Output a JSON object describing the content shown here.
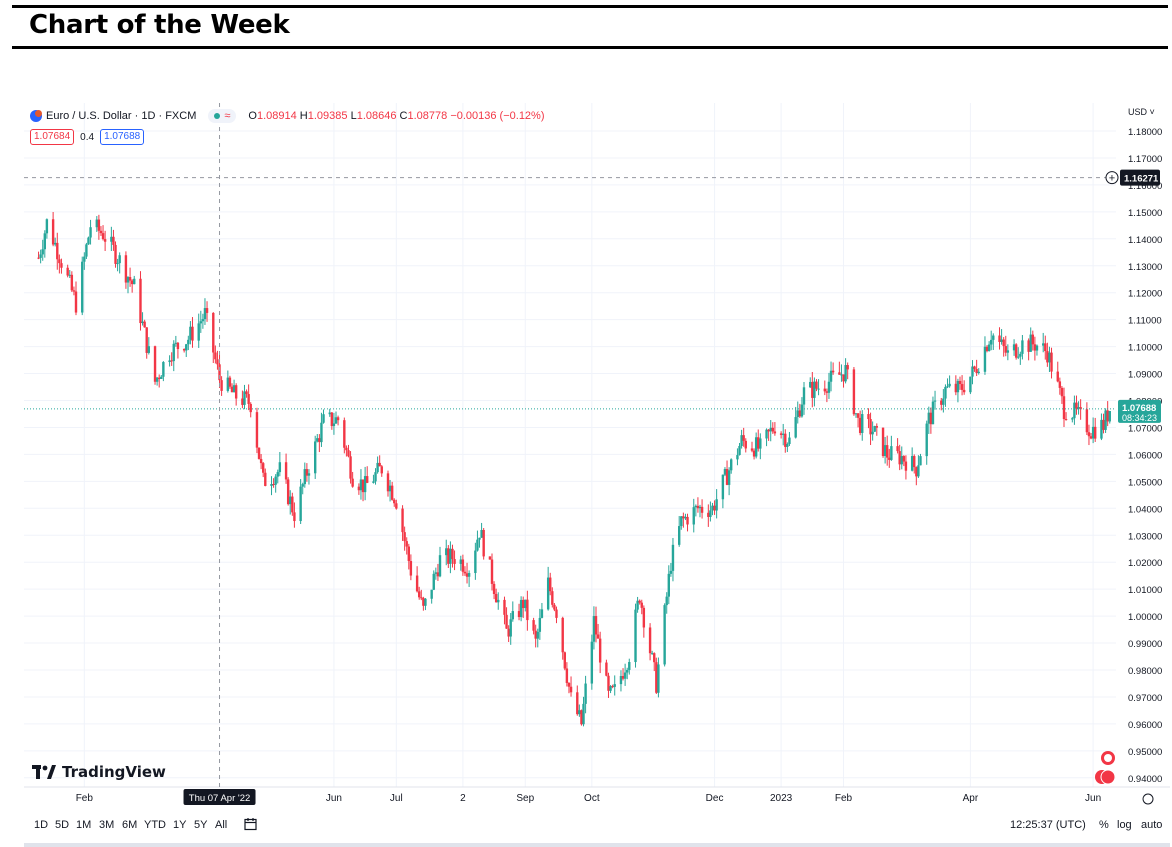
{
  "page": {
    "title": "Chart of the Week"
  },
  "legend": {
    "symbol": "Euro / U.S. Dollar · 1D · FXCM",
    "market_wave": "≈",
    "ohlc": {
      "o_label": "O",
      "o": "1.08914",
      "h_label": "H",
      "h": "1.09385",
      "l_label": "L",
      "l": "1.08646",
      "c_label": "C",
      "c": "1.08778",
      "change": "−0.00136 (−0.12%)"
    },
    "sell_price": "1.07684",
    "spread": "0.4",
    "buy_price": "1.07688"
  },
  "currency_label": "USD ˅",
  "brand": "TradingView",
  "bottom": {
    "timeframes": [
      "1D",
      "5D",
      "1M",
      "3M",
      "6M",
      "YTD",
      "1Y",
      "5Y",
      "All"
    ],
    "clock": "12:25:37 (UTC)",
    "opt_pct": "%",
    "opt_log": "log",
    "opt_auto": "auto"
  },
  "colors": {
    "up": "#26a69a",
    "down": "#f23645",
    "grid": "#f0f3fa",
    "last_price_bg": "#26a69a",
    "crosshair_label_bg": "#131722"
  },
  "chart_data": {
    "type": "candlestick",
    "title": "",
    "symbol": "Euro / U.S. Dollar",
    "interval": "1D",
    "x_ticks": [
      "Feb",
      "Thu 07 Apr '22",
      "Jun",
      "Jul",
      "2",
      "Sep",
      "Oct",
      "Dec",
      "2023",
      "Feb",
      "Apr",
      "Jun"
    ],
    "y_ticks": [
      "1.18000",
      "1.17000",
      "1.16000",
      "1.15000",
      "1.14000",
      "1.13000",
      "1.12000",
      "1.11000",
      "1.10000",
      "1.09000",
      "1.08000",
      "1.07000",
      "1.06000",
      "1.05000",
      "1.04000",
      "1.03000",
      "1.02000",
      "1.01000",
      "1.00000",
      "0.99000",
      "0.98000",
      "0.97000",
      "0.96000",
      "0.95000",
      "0.94000"
    ],
    "ylim": [
      0.937,
      1.186
    ],
    "crosshair": {
      "date": "Thu 07 Apr '22",
      "price": "1.16271"
    },
    "last_price": {
      "price": "1.07688",
      "countdown": "08:34:23"
    },
    "close_path": [
      [
        "2022-01-10",
        1.133
      ],
      [
        "2022-01-14",
        1.146
      ],
      [
        "2022-01-20",
        1.134
      ],
      [
        "2022-01-28",
        1.116
      ],
      [
        "2022-02-04",
        1.145
      ],
      [
        "2022-02-10",
        1.142
      ],
      [
        "2022-02-18",
        1.132
      ],
      [
        "2022-02-25",
        1.122
      ],
      [
        "2022-03-07",
        1.087
      ],
      [
        "2022-03-14",
        1.098
      ],
      [
        "2022-03-23",
        1.103
      ],
      [
        "2022-03-31",
        1.112
      ],
      [
        "2022-04-07",
        1.088
      ],
      [
        "2022-04-14",
        1.082
      ],
      [
        "2022-04-22",
        1.079
      ],
      [
        "2022-04-28",
        1.05
      ],
      [
        "2022-05-06",
        1.054
      ],
      [
        "2022-05-13",
        1.038
      ],
      [
        "2022-05-20",
        1.056
      ],
      [
        "2022-05-27",
        1.072
      ],
      [
        "2022-06-03",
        1.073
      ],
      [
        "2022-06-10",
        1.052
      ],
      [
        "2022-06-16",
        1.048
      ],
      [
        "2022-06-24",
        1.055
      ],
      [
        "2022-07-01",
        1.043
      ],
      [
        "2022-07-08",
        1.017
      ],
      [
        "2022-07-14",
        1.002
      ],
      [
        "2022-07-22",
        1.021
      ],
      [
        "2022-07-29",
        1.022
      ],
      [
        "2022-08-05",
        1.018
      ],
      [
        "2022-08-10",
        1.032
      ],
      [
        "2022-08-15",
        1.017
      ],
      [
        "2022-08-23",
        0.994
      ],
      [
        "2022-08-31",
        1.005
      ],
      [
        "2022-09-06",
        0.99
      ],
      [
        "2022-09-12",
        1.012
      ],
      [
        "2022-09-16",
        1.002
      ],
      [
        "2022-09-23",
        0.969
      ],
      [
        "2022-09-28",
        0.96
      ],
      [
        "2022-10-04",
        0.998
      ],
      [
        "2022-10-11",
        0.97
      ],
      [
        "2022-10-14",
        0.972
      ],
      [
        "2022-10-21",
        0.986
      ],
      [
        "2022-10-26",
        1.008
      ],
      [
        "2022-11-03",
        0.975
      ],
      [
        "2022-11-10",
        1.02
      ],
      [
        "2022-11-15",
        1.035
      ],
      [
        "2022-11-23",
        1.04
      ],
      [
        "2022-11-30",
        1.04
      ],
      [
        "2022-12-05",
        1.049
      ],
      [
        "2022-12-14",
        1.065
      ],
      [
        "2022-12-23",
        1.062
      ],
      [
        "2022-12-30",
        1.071
      ],
      [
        "2023-01-06",
        1.065
      ],
      [
        "2023-01-13",
        1.083
      ],
      [
        "2023-01-20",
        1.085
      ],
      [
        "2023-01-27",
        1.088
      ],
      [
        "2023-02-02",
        1.091
      ],
      [
        "2023-02-08",
        1.072
      ],
      [
        "2023-02-15",
        1.069
      ],
      [
        "2023-02-22",
        1.06
      ],
      [
        "2023-03-01",
        1.059
      ],
      [
        "2023-03-08",
        1.055
      ],
      [
        "2023-03-14",
        1.073
      ],
      [
        "2023-03-22",
        1.084
      ],
      [
        "2023-03-29",
        1.084
      ],
      [
        "2023-04-05",
        1.091
      ],
      [
        "2023-04-13",
        1.105
      ],
      [
        "2023-04-21",
        1.097
      ],
      [
        "2023-04-28",
        1.101
      ],
      [
        "2023-05-04",
        1.101
      ],
      [
        "2023-05-10",
        1.098
      ],
      [
        "2023-05-18",
        1.077
      ],
      [
        "2023-05-24",
        1.075
      ],
      [
        "2023-05-31",
        1.069
      ],
      [
        "2023-06-06",
        1.071
      ],
      [
        "2023-06-09",
        1.077
      ]
    ]
  }
}
